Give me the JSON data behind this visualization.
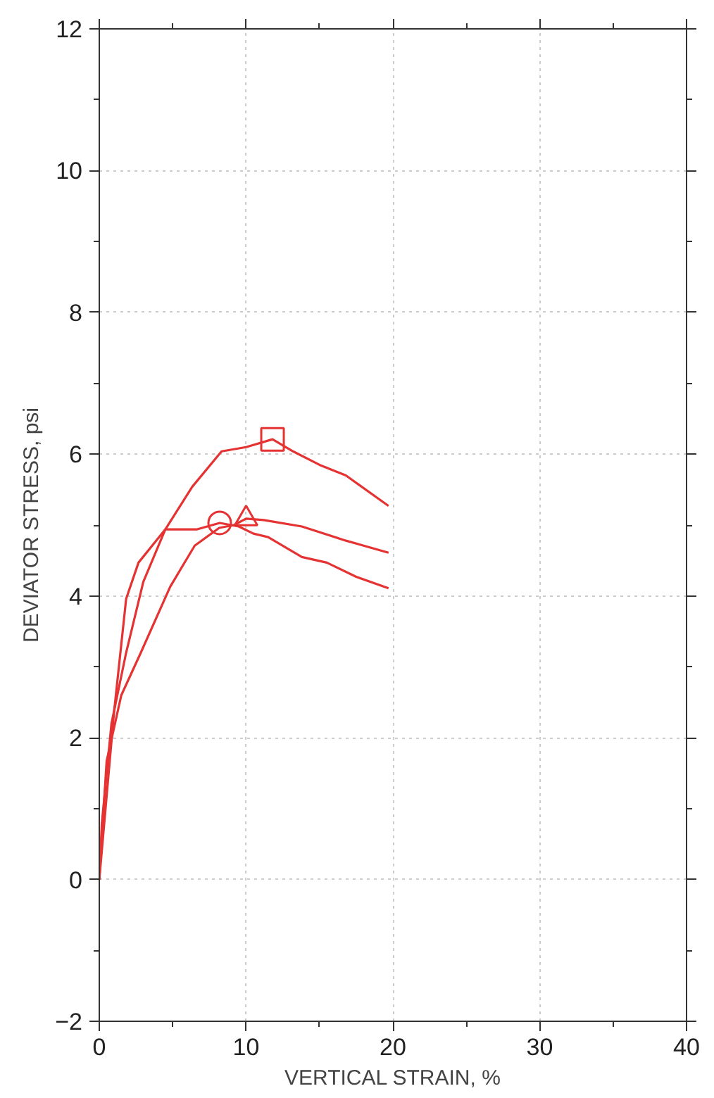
{
  "chart_data": {
    "type": "line",
    "xlabel": "VERTICAL STRAIN, %",
    "ylabel": "DEVIATOR STRESS, psi",
    "xlim": [
      0,
      40
    ],
    "ylim": [
      -2,
      12
    ],
    "xticks": [
      0,
      10,
      20,
      30,
      40
    ],
    "yticks": [
      -2,
      0,
      2,
      4,
      6,
      8,
      10,
      12
    ],
    "grid": true,
    "line_style": "solid",
    "series": [
      {
        "color": "#e53232",
        "x": [
          0,
          0.17,
          0.83,
          1.83,
          3.0,
          4.5,
          6.33,
          8.33,
          10.0,
          11.8,
          13.2,
          15.0,
          16.8,
          19.7
        ],
        "values": [
          0,
          0.78,
          2.2,
          3.2,
          4.2,
          4.94,
          5.54,
          6.04,
          6.1,
          6.21,
          6.04,
          5.85,
          5.7,
          5.27
        ]
      },
      {
        "color": "#e53232",
        "x": [
          0,
          1.0,
          1.83,
          2.67,
          4.5,
          6.67,
          8.2,
          9.5,
          10.5,
          11.5,
          13.8,
          15.5,
          17.5,
          19.7
        ],
        "values": [
          0,
          2.35,
          3.96,
          4.47,
          4.94,
          4.94,
          5.03,
          4.98,
          4.88,
          4.83,
          4.55,
          4.47,
          4.27,
          4.11
        ]
      },
      {
        "color": "#e53232",
        "x": [
          0,
          0.5,
          1.5,
          2.83,
          4.83,
          6.5,
          8.17,
          9.17,
          10.0,
          11.2,
          13.8,
          16.8,
          19.7
        ],
        "values": [
          0,
          1.67,
          2.6,
          3.2,
          4.13,
          4.71,
          4.96,
          5.0,
          5.09,
          5.07,
          4.98,
          4.78,
          4.61
        ]
      },
      {
        "type": "scatter",
        "marker": "square",
        "color": "#e53232",
        "x": [
          11.8
        ],
        "values": [
          6.21
        ]
      },
      {
        "type": "scatter",
        "marker": "circle",
        "color": "#e53232",
        "x": [
          8.2
        ],
        "values": [
          5.03
        ]
      },
      {
        "type": "scatter",
        "marker": "triangle",
        "color": "#e53232",
        "x": [
          10.0
        ],
        "values": [
          5.09
        ]
      }
    ]
  }
}
